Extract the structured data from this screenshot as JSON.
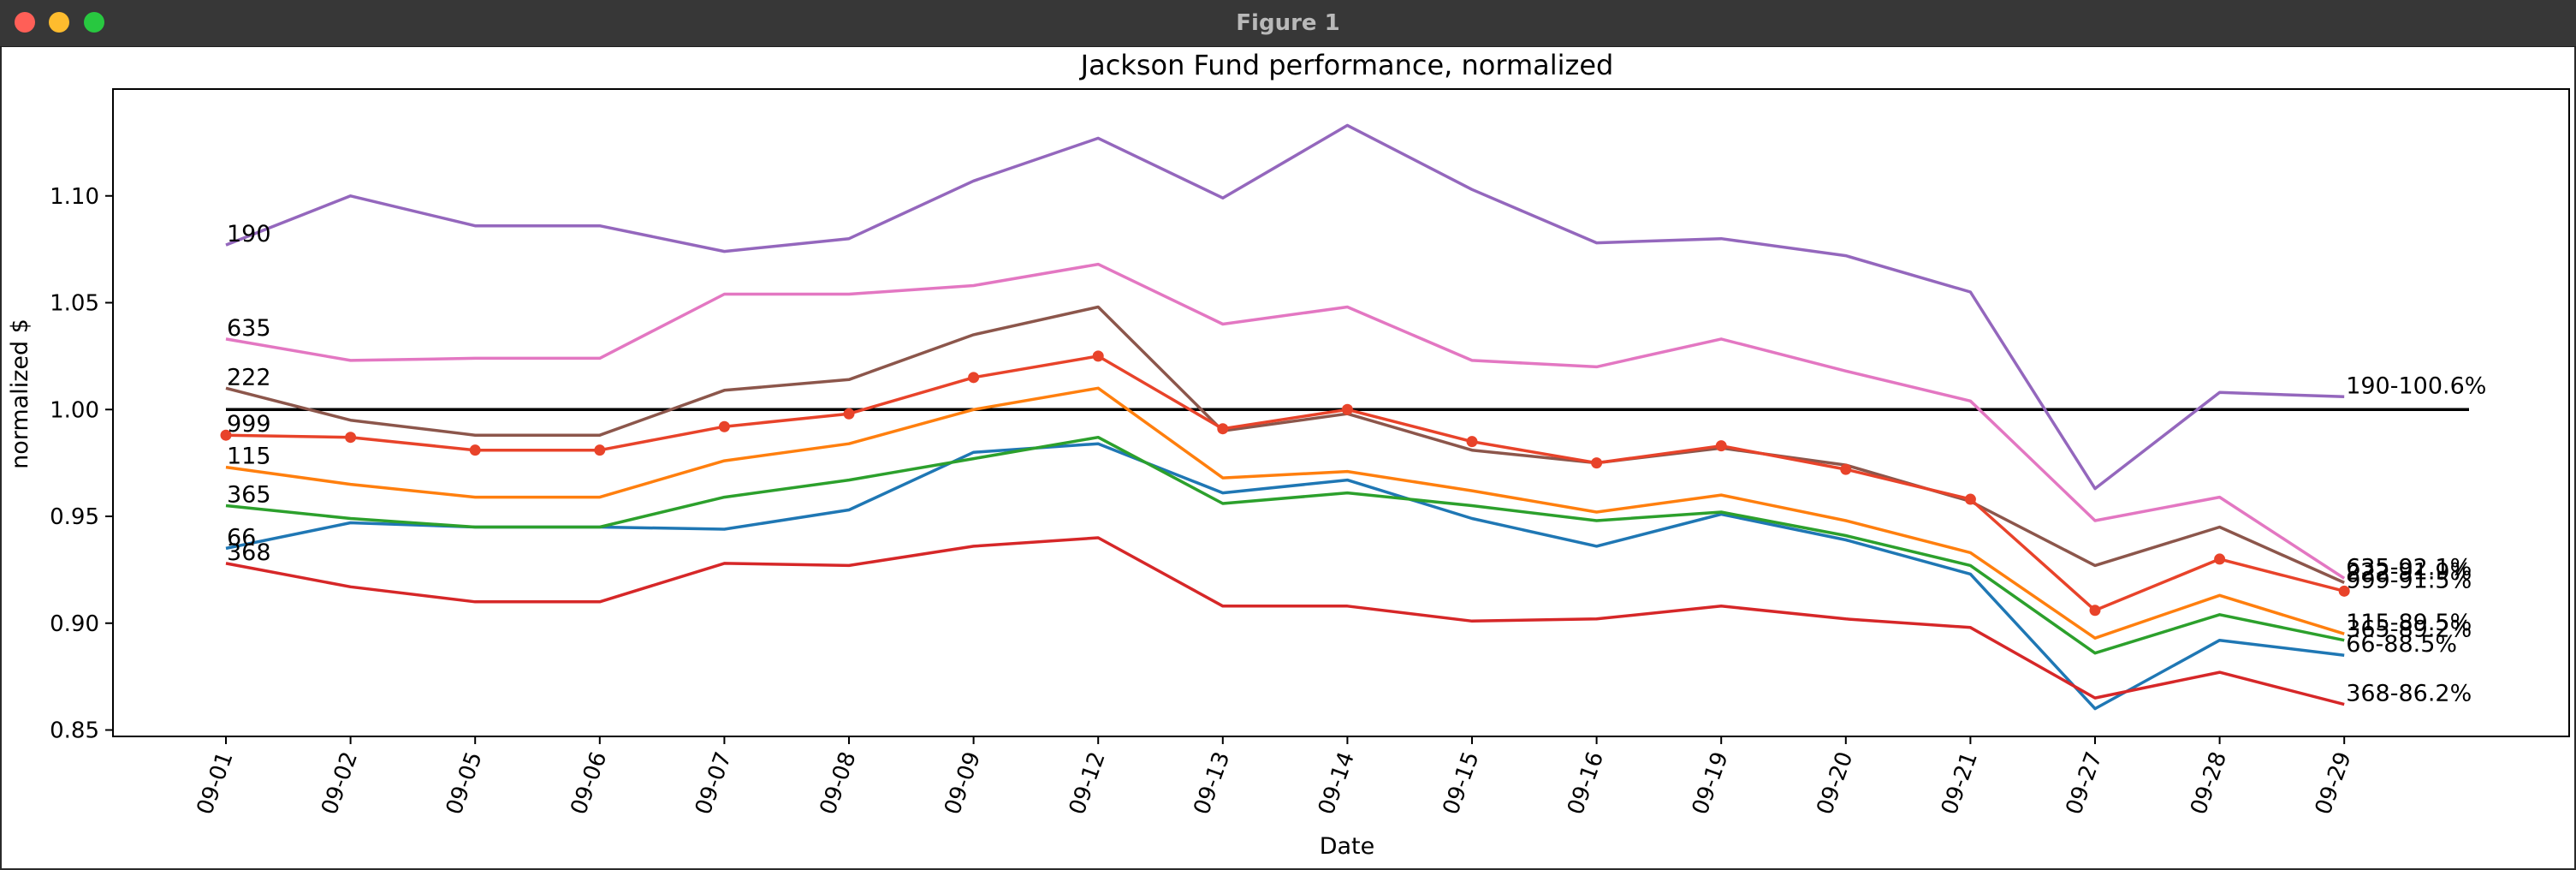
{
  "window": {
    "title": "Figure 1"
  },
  "chart_data": {
    "type": "line",
    "title": "Jackson Fund performance, normalized",
    "xlabel": "Date",
    "ylabel": "normalized $",
    "categories": [
      "09-01",
      "09-02",
      "09-05",
      "09-06",
      "09-07",
      "09-08",
      "09-09",
      "09-12",
      "09-13",
      "09-14",
      "09-15",
      "09-16",
      "09-19",
      "09-20",
      "09-21",
      "09-27",
      "09-28",
      "09-29"
    ],
    "ylim": [
      0.847,
      1.15
    ],
    "yticks": [
      "0.85",
      "0.90",
      "0.95",
      "1.00",
      "1.05",
      "1.10"
    ],
    "grid": false,
    "series": [
      {
        "name": "66",
        "color": "#1f77b4",
        "markers": false,
        "start_label": "66",
        "end_label": "66-88.5%",
        "values": [
          0.935,
          0.947,
          0.945,
          0.945,
          0.944,
          0.953,
          0.98,
          0.984,
          0.961,
          0.967,
          0.949,
          0.936,
          0.951,
          0.939,
          0.923,
          0.86,
          0.892,
          0.885
        ]
      },
      {
        "name": "115",
        "color": "#ff7f0e",
        "markers": false,
        "start_label": "115",
        "end_label": "115-89.5%",
        "values": [
          0.973,
          0.965,
          0.959,
          0.959,
          0.976,
          0.984,
          1.0,
          1.01,
          0.968,
          0.971,
          0.962,
          0.952,
          0.96,
          0.948,
          0.933,
          0.893,
          0.913,
          0.895
        ]
      },
      {
        "name": "365",
        "color": "#2ca02c",
        "markers": false,
        "start_label": "365",
        "end_label": "365-89.2%",
        "values": [
          0.955,
          0.949,
          0.945,
          0.945,
          0.959,
          0.967,
          0.977,
          0.987,
          0.956,
          0.961,
          0.955,
          0.948,
          0.952,
          0.941,
          0.927,
          0.886,
          0.904,
          0.892
        ]
      },
      {
        "name": "368",
        "color": "#d62728",
        "markers": false,
        "start_label": "368",
        "end_label": "368-86.2%",
        "values": [
          0.928,
          0.917,
          0.91,
          0.91,
          0.928,
          0.927,
          0.936,
          0.94,
          0.908,
          0.908,
          0.901,
          0.902,
          0.908,
          0.902,
          0.898,
          0.865,
          0.877,
          0.862
        ]
      },
      {
        "name": "190",
        "color": "#9467bd",
        "markers": false,
        "start_label": "190",
        "end_label": "190-100.6%",
        "values": [
          1.077,
          1.1,
          1.086,
          1.086,
          1.074,
          1.08,
          1.107,
          1.127,
          1.099,
          1.133,
          1.103,
          1.078,
          1.08,
          1.072,
          1.055,
          0.963,
          1.008,
          1.006
        ]
      },
      {
        "name": "222",
        "color": "#8c564b",
        "markers": false,
        "start_label": "222",
        "end_label": "222-91.9%",
        "values": [
          1.01,
          0.995,
          0.988,
          0.988,
          1.009,
          1.014,
          1.035,
          1.048,
          0.99,
          0.998,
          0.981,
          0.975,
          0.982,
          0.974,
          0.957,
          0.927,
          0.945,
          0.919
        ]
      },
      {
        "name": "635",
        "color": "#e377c2",
        "markers": false,
        "start_label": "635",
        "end_label": "635-92.1%",
        "values": [
          1.033,
          1.023,
          1.024,
          1.024,
          1.054,
          1.054,
          1.058,
          1.068,
          1.04,
          1.048,
          1.023,
          1.02,
          1.033,
          1.018,
          1.004,
          0.948,
          0.959,
          0.921
        ]
      },
      {
        "name": "999",
        "color": "#e8432a",
        "markers": true,
        "start_label": "999",
        "end_label": "999-91.5%",
        "values": [
          0.988,
          0.987,
          0.981,
          0.981,
          0.992,
          0.998,
          1.015,
          1.025,
          0.991,
          1.0,
          0.985,
          0.975,
          0.983,
          0.972,
          0.958,
          0.906,
          0.93,
          0.915
        ]
      }
    ],
    "reference_line": {
      "y": 1.0,
      "color": "#000000"
    }
  }
}
